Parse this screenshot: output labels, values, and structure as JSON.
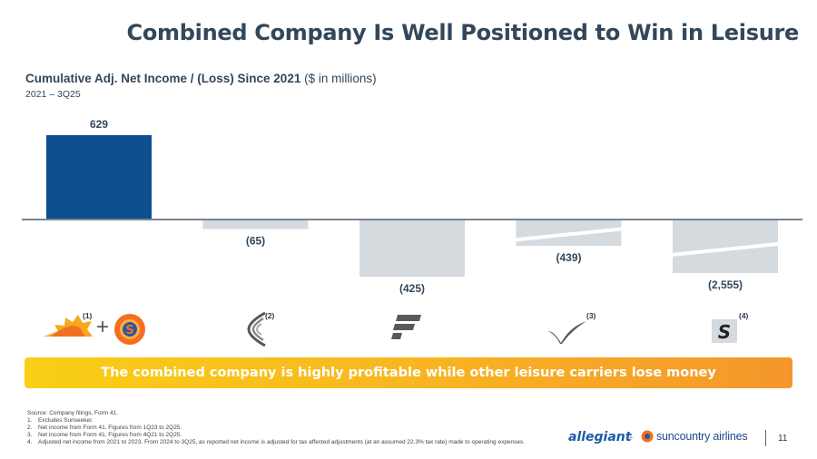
{
  "title": "Combined Company Is Well Positioned to Win in Leisure",
  "subtitle": {
    "bold": "Cumulative Adj. Net Income / (Loss) Since 2021",
    "normal": " ($ in millions)"
  },
  "period": "2021 – 3Q25",
  "chart_data": {
    "type": "bar",
    "categories": [
      "",
      "",
      "",
      "",
      ""
    ],
    "values": [
      629,
      -65,
      -425,
      -439,
      -2555
    ],
    "value_labels": [
      "629",
      "(65)",
      "(425)",
      "(439)",
      "(2,555)"
    ],
    "axis_breaks": [
      false,
      false,
      false,
      true,
      true
    ],
    "colors": [
      "#0d4e8f",
      "#d5dadf",
      "#d5dadf",
      "#d5dadf",
      "#d5dadf"
    ],
    "title": "",
    "xlabel": "",
    "ylabel": "",
    "grid": false,
    "legend": "none"
  },
  "carriers": [
    {
      "logo": "allegiant-sun-country-combined",
      "footnote": "(1)",
      "plus": "+",
      "badge": "S"
    },
    {
      "logo": "carrier-2-chevron",
      "footnote": "(2)"
    },
    {
      "logo": "carrier-3-f-mark",
      "footnote": ""
    },
    {
      "logo": "carrier-4-check-mark",
      "footnote": "(3)"
    },
    {
      "logo": "carrier-5-s-mark",
      "footnote": "(4)",
      "letter": "S"
    }
  ],
  "banner": {
    "text": "The combined company is highly profitable while other leisure carriers lose money",
    "colors": [
      "#f9cf16",
      "#f5962c"
    ]
  },
  "sources": {
    "intro": "Source: Company filings, Form 41.",
    "notes": [
      {
        "num": "1.",
        "text": "Excludes Sunseeker."
      },
      {
        "num": "2.",
        "text": "Net income from Form 41. Figures from 1Q23 to 2Q25."
      },
      {
        "num": "3.",
        "text": "Net income from Form 41. Figures from 4Q21 to 2Q25."
      },
      {
        "num": "4.",
        "text": "Adjusted net income from 2021 to 2023. From 2024 to 3Q25, as reported net income is adjusted for tax affected adjustments (at an assumed 22.3% tax rate) made to operating expenses."
      }
    ]
  },
  "footer": {
    "allegiant": "allegiant",
    "plus": "+",
    "suncountry": "suncountry airlines",
    "page": "11"
  }
}
